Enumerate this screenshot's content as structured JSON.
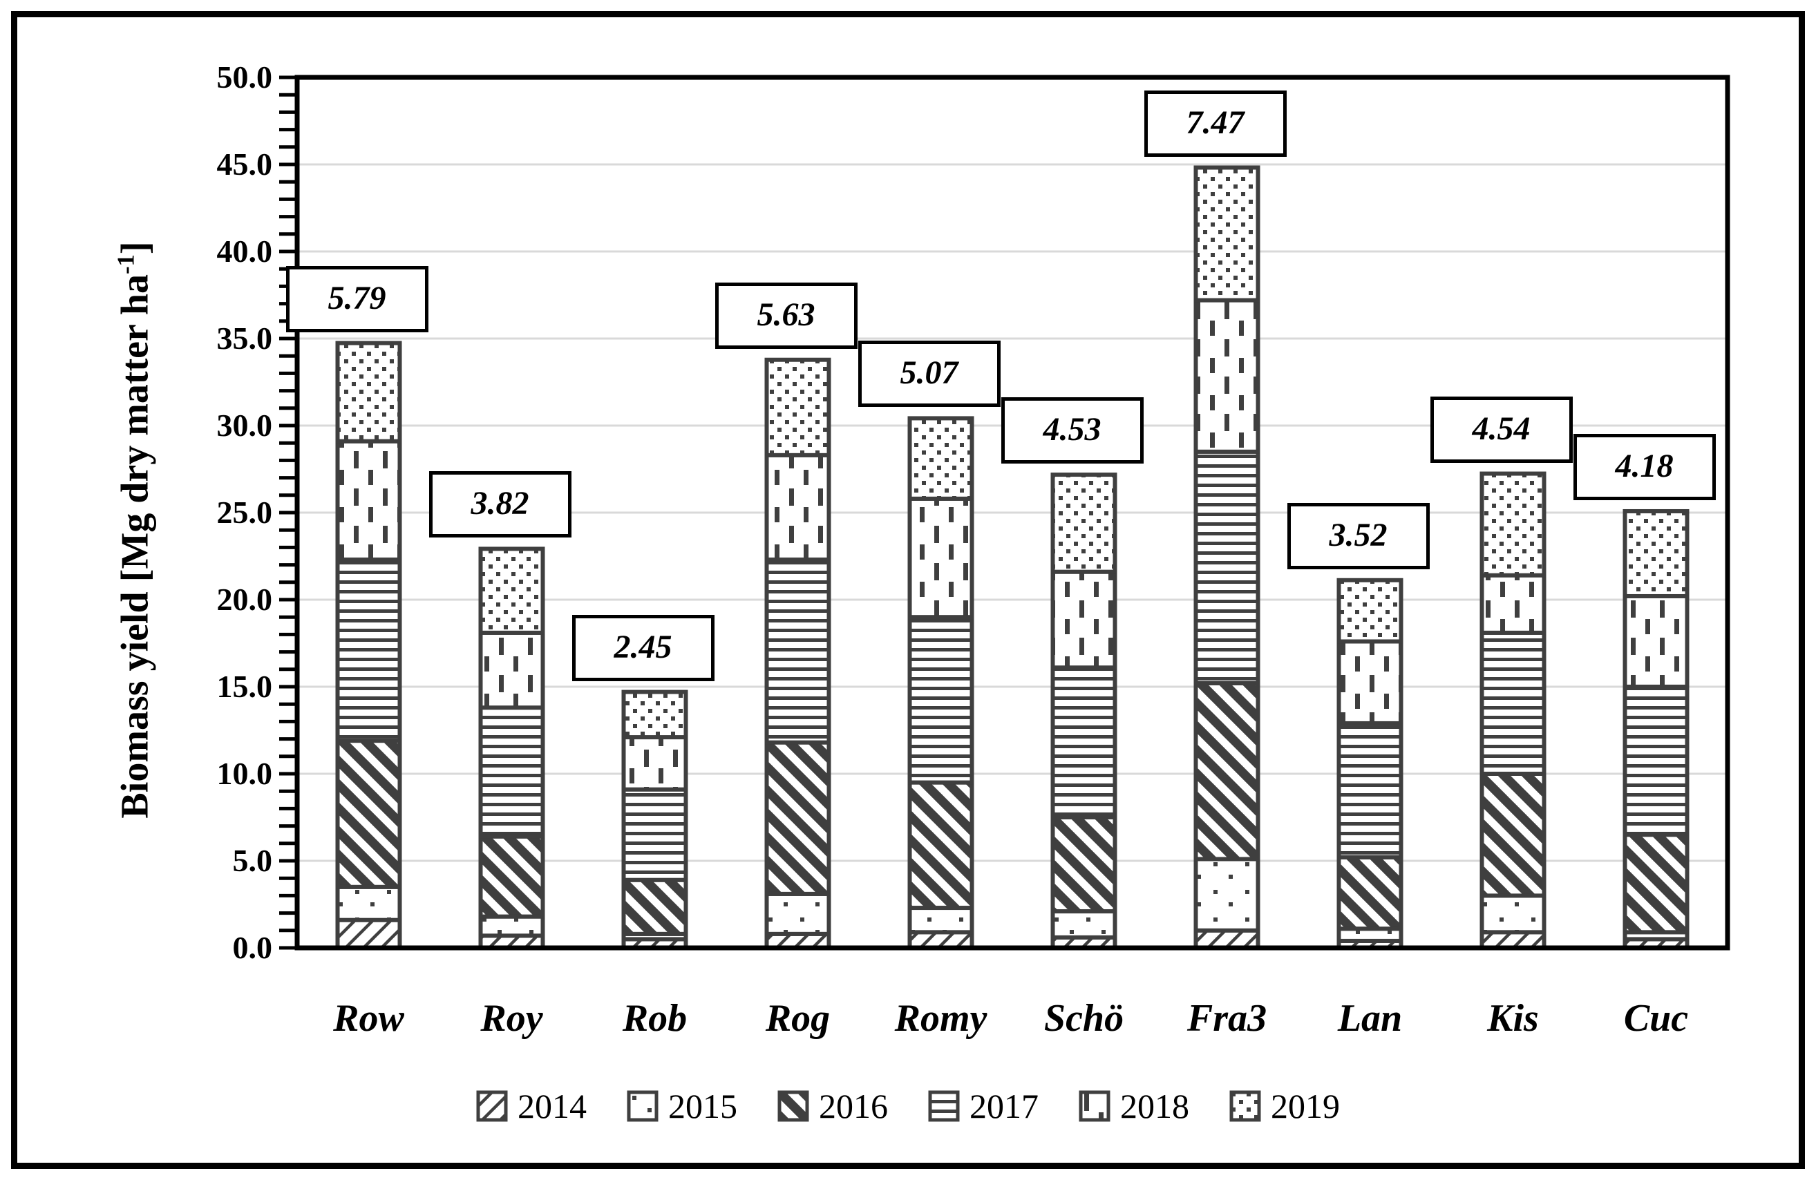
{
  "figure": {
    "kind": "stacked-bar-chart-figure",
    "title": ""
  },
  "colors": {
    "ink": "#3f3f3f",
    "axis": "#000000",
    "gridline": "#d9d9d9",
    "background": "#ffffff",
    "label_box_border": "#000000"
  },
  "chart_data": {
    "type": "bar",
    "stacked": true,
    "title": "",
    "xlabel": "",
    "ylabel": "Biomass yield [Mg dry matter ha⁻¹]",
    "ylabel_parts": {
      "pre": "Biomass yield [Mg dry matter ha",
      "sup": "-1",
      "post": "]"
    },
    "ylim": [
      0,
      50
    ],
    "ytick_step": 5,
    "ytick_labels": [
      "0.0",
      "5.0",
      "10.0",
      "15.0",
      "20.0",
      "25.0",
      "30.0",
      "35.0",
      "40.0",
      "45.0",
      "50.0"
    ],
    "minor_tick_step": 1,
    "grid": true,
    "legend_position": "bottom",
    "categories": [
      "Row",
      "Roy",
      "Rob",
      "Rog",
      "Romy",
      "Schö",
      "Fra3",
      "Lan",
      "Kis",
      "Cuc"
    ],
    "series": [
      {
        "name": "2014",
        "pattern": "light-diagonal-hatch",
        "values": [
          1.6,
          0.7,
          0.5,
          0.8,
          0.9,
          0.6,
          1.0,
          0.4,
          0.9,
          0.5
        ]
      },
      {
        "name": "2015",
        "pattern": "sparse-dots",
        "values": [
          1.9,
          1.1,
          0.3,
          2.3,
          1.4,
          1.5,
          4.1,
          0.7,
          2.1,
          0.4
        ]
      },
      {
        "name": "2016",
        "pattern": "bold-diagonal-stripes",
        "values": [
          8.4,
          4.6,
          3.1,
          8.7,
          7.2,
          5.4,
          10.1,
          4.1,
          7.0,
          5.6
        ]
      },
      {
        "name": "2017",
        "pattern": "horizontal-lines",
        "values": [
          10.4,
          7.4,
          5.2,
          10.5,
          9.5,
          8.6,
          13.3,
          7.7,
          8.1,
          8.5
        ]
      },
      {
        "name": "2018",
        "pattern": "vertical-dashes",
        "values": [
          6.8,
          4.3,
          3.0,
          6.0,
          6.8,
          5.5,
          8.7,
          4.7,
          3.3,
          5.2
        ]
      },
      {
        "name": "2019",
        "pattern": "dense-dots",
        "values": [
          5.64,
          4.82,
          2.6,
          5.48,
          4.62,
          5.58,
          7.62,
          3.52,
          5.84,
          4.88
        ]
      }
    ],
    "stack_totals": [
      34.74,
      22.92,
      14.7,
      33.78,
      30.42,
      27.18,
      44.82,
      21.12,
      27.24,
      25.08
    ],
    "bar_value_labels": [
      "5.79",
      "3.82",
      "2.45",
      "5.63",
      "5.07",
      "4.53",
      "7.47",
      "3.52",
      "4.54",
      "4.18"
    ]
  }
}
